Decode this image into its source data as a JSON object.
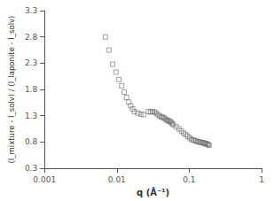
{
  "chart_data": {
    "type": "scatter",
    "xlabel": "q (Å⁻¹)",
    "ylabel": "(I_mixture - I_solv) / (I_laponite - I_solv)",
    "x": [
      0.00694,
      0.00778,
      0.00875,
      0.00972,
      0.01069,
      0.01166,
      0.01263,
      0.0136,
      0.01457,
      0.01554,
      0.01651,
      0.01748,
      0.01944,
      0.02139,
      0.02333,
      0.02722,
      0.02917,
      0.03111,
      0.03305,
      0.035,
      0.03694,
      0.03888,
      0.04083,
      0.04277,
      0.04471,
      0.04666,
      0.0486,
      0.05054,
      0.05249,
      0.05443,
      0.05637,
      0.05831,
      0.06026,
      0.06609,
      0.07192,
      0.07775,
      0.08358,
      0.08941,
      0.09524,
      0.10107,
      0.1069,
      0.11273,
      0.11856,
      0.12439,
      0.13022,
      0.13605,
      0.14188,
      0.14771,
      0.15354,
      0.15937,
      0.1652,
      0.17103,
      0.17686,
      0.18269,
      0.18852
    ],
    "values": [
      2.8,
      2.55,
      2.28,
      2.13,
      1.99,
      1.87,
      1.75,
      1.65,
      1.56,
      1.49,
      1.43,
      1.38,
      1.35,
      1.33,
      1.32,
      1.38,
      1.37,
      1.38,
      1.37,
      1.35,
      1.32,
      1.3,
      1.28,
      1.27,
      1.26,
      1.24,
      1.22,
      1.21,
      1.2,
      1.19,
      1.17,
      1.15,
      1.13,
      1.09,
      1.05,
      1.01,
      0.97,
      0.94,
      0.91,
      0.88,
      0.85,
      0.84,
      0.83,
      0.82,
      0.81,
      0.8,
      0.8,
      0.79,
      0.79,
      0.78,
      0.77,
      0.77,
      0.76,
      0.75,
      0.74
    ],
    "color": "#666666",
    "marker": "square",
    "log": "x",
    "xlim": [
      0.001,
      1
    ],
    "xticks": [
      0.001,
      0.01,
      0.1,
      1
    ],
    "ylim": [
      0.3,
      3.3
    ],
    "yticks": [
      0.3,
      0.8,
      1.3,
      1.8,
      2.3,
      2.8,
      3.3
    ],
    "grid": false
  }
}
